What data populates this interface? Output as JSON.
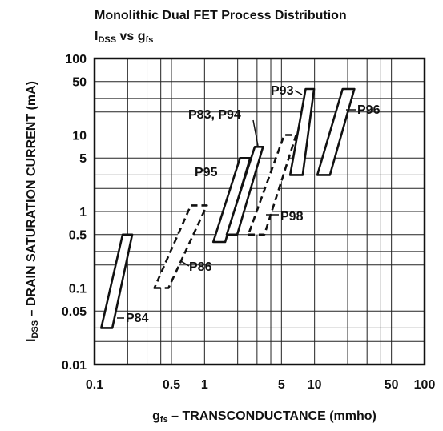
{
  "chart_data": {
    "type": "region",
    "title": "Monolithic Dual FET Process Distribution",
    "subtitle": [
      {
        "text": "I"
      },
      {
        "text": "DSS",
        "sub": true
      },
      {
        "text": " vs g"
      },
      {
        "text": "fs",
        "sub": true
      }
    ],
    "ylabel": [
      {
        "text": "I"
      },
      {
        "text": "DSS",
        "sub": true
      },
      {
        "text": " – DRAIN SATURATION CURRENT (mA)"
      }
    ],
    "xlabel": [
      {
        "text": "g"
      },
      {
        "text": "fs",
        "sub": true
      },
      {
        "text": " – TRANSCONDUCTANCE (mmho)"
      }
    ],
    "xscale": "log",
    "yscale": "log",
    "xlim": [
      0.1,
      100
    ],
    "ylim": [
      0.01,
      100
    ],
    "xticks": [
      0.1,
      0.5,
      1,
      5,
      10,
      50,
      100
    ],
    "yticks": [
      100,
      50,
      10,
      5,
      1,
      0.5,
      0.1,
      0.05,
      0.01
    ],
    "xgrid": [
      0.2,
      0.3,
      0.4,
      2,
      3,
      4,
      20,
      30,
      40
    ],
    "ygrid": [
      0.02,
      0.03,
      0.2,
      0.3,
      2,
      3,
      20,
      30
    ],
    "grid": true,
    "series": [
      {
        "name": "P84",
        "dashed": false,
        "x": [
          0.115,
          0.145,
          0.22,
          0.18
        ],
        "y": [
          0.03,
          0.03,
          0.5,
          0.5
        ]
      },
      {
        "name": "P86",
        "dashed": true,
        "x": [
          0.35,
          0.47,
          1.05,
          0.75
        ],
        "y": [
          0.1,
          0.1,
          1.2,
          1.2
        ]
      },
      {
        "name": "P95",
        "dashed": false,
        "x": [
          1.2,
          1.54,
          2.6,
          2.1
        ],
        "y": [
          0.4,
          0.4,
          5,
          5
        ]
      },
      {
        "name": "P83, P94",
        "dashed": false,
        "x": [
          1.59,
          1.98,
          3.4,
          2.86
        ],
        "y": [
          0.5,
          0.5,
          7,
          7
        ]
      },
      {
        "name": "P98",
        "dashed": true,
        "x": [
          2.5,
          3.5,
          6.8,
          5.3
        ],
        "y": [
          0.5,
          0.5,
          10,
          10
        ]
      },
      {
        "name": "P93",
        "dashed": false,
        "x": [
          6,
          7.8,
          9.9,
          8.3
        ],
        "y": [
          3,
          3,
          40,
          40
        ]
      },
      {
        "name": "P96",
        "dashed": false,
        "x": [
          10.6,
          13.8,
          23,
          18
        ],
        "y": [
          3,
          3,
          40,
          40
        ]
      }
    ]
  }
}
